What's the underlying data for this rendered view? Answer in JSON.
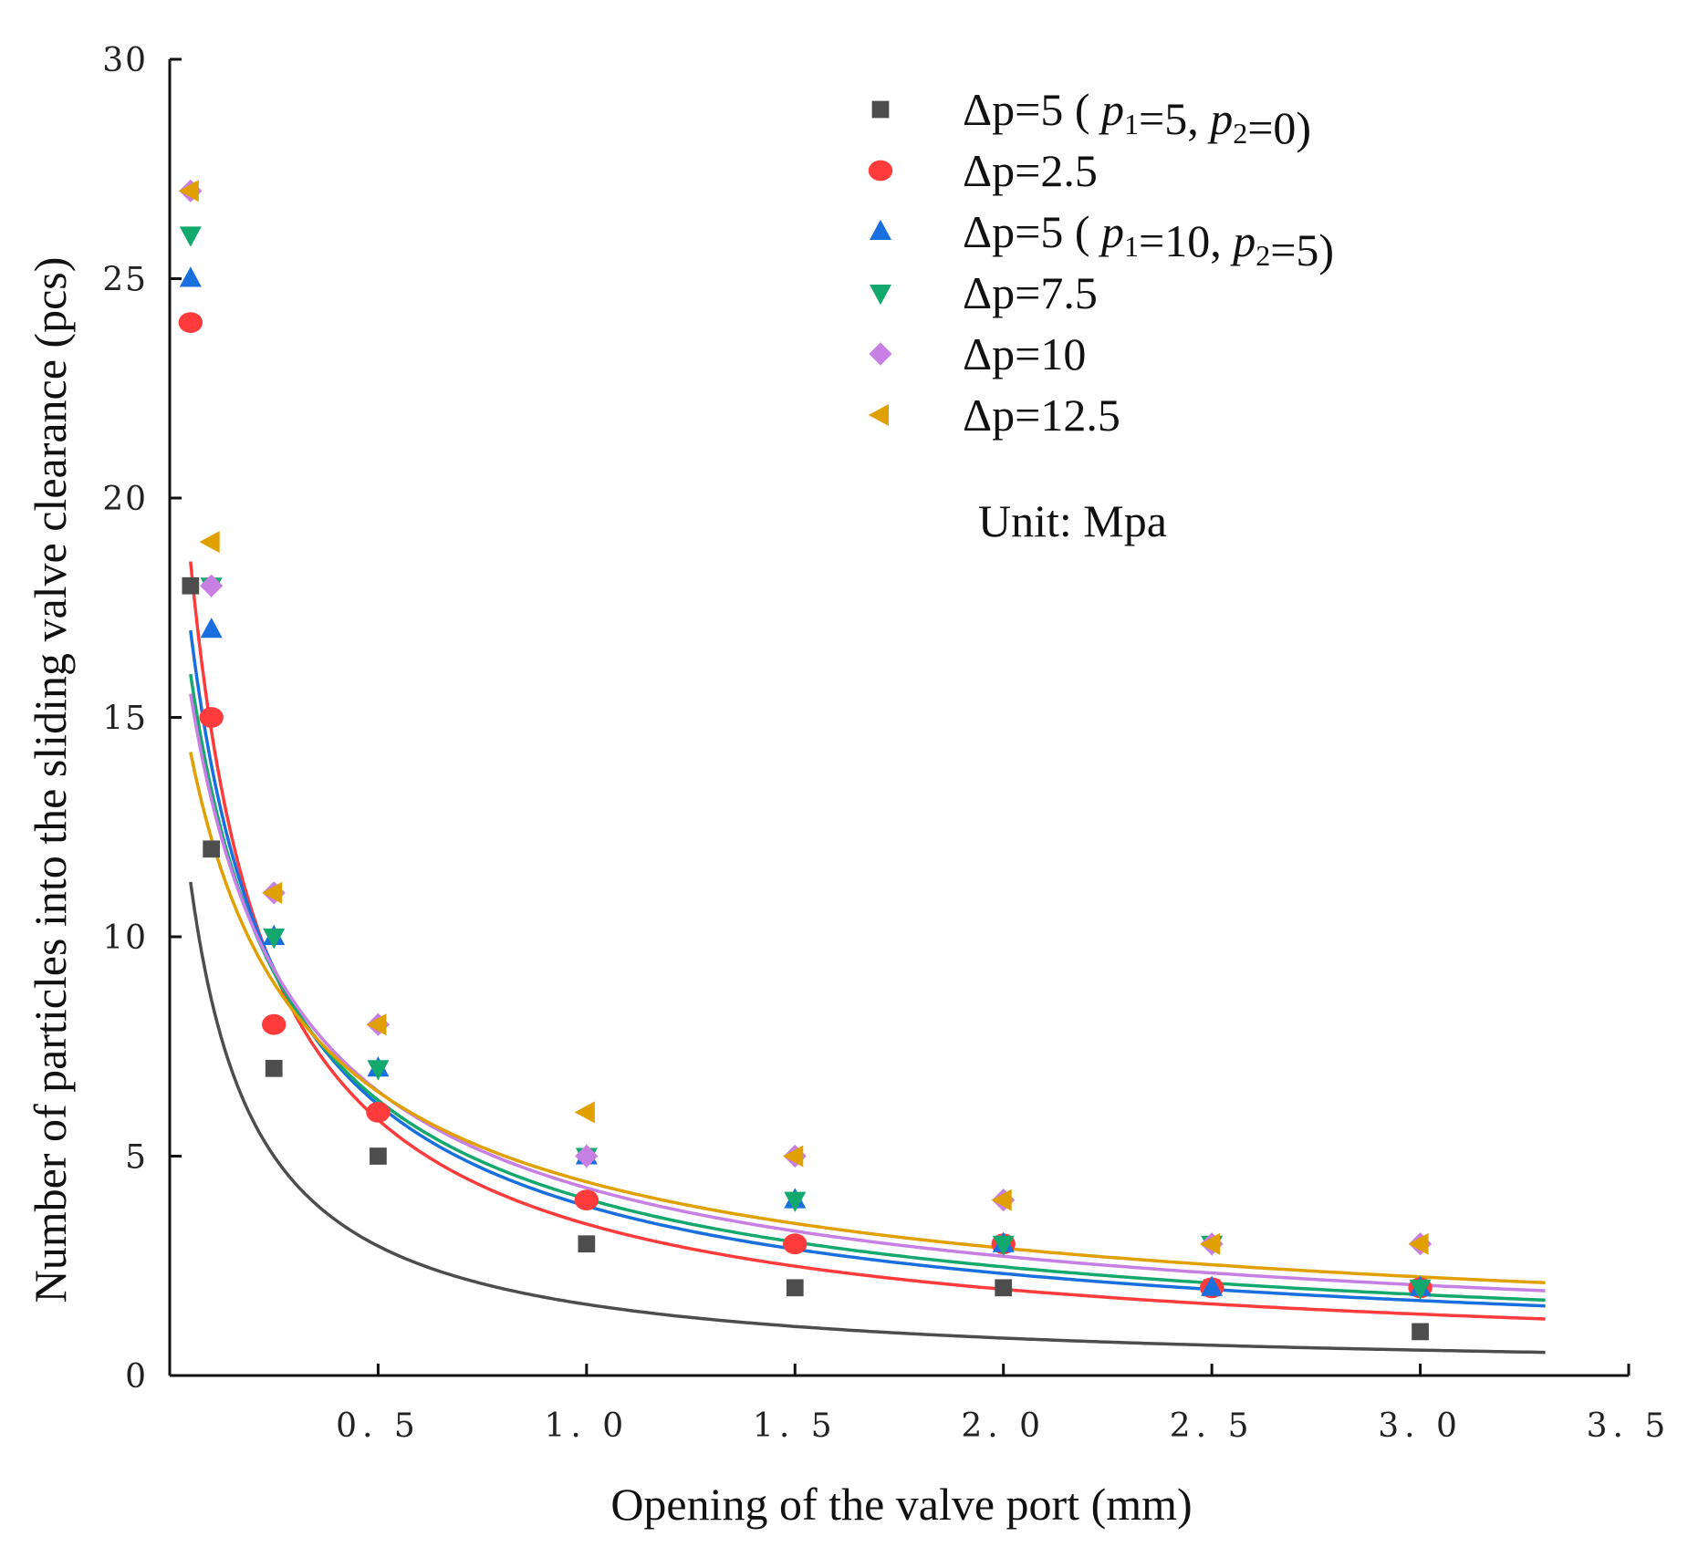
{
  "chart_data": {
    "type": "scatter",
    "title": "",
    "xlabel": "Opening of the valve port (mm)",
    "ylabel": "Number of particles into the sliding valve clearance  (pcs)",
    "xlim": [
      0,
      3.5
    ],
    "ylim": [
      0,
      30
    ],
    "xticks": [
      0.5,
      1.0,
      1.5,
      2.0,
      2.5,
      3.0,
      3.5
    ],
    "xtick_labels": [
      "0. 5",
      "1. 0",
      "1. 5",
      "2. 0",
      "2. 5",
      "3. 0",
      "3. 5"
    ],
    "yticks": [
      0,
      5,
      10,
      15,
      20,
      25,
      30
    ],
    "ytick_labels": [
      "0",
      "5",
      "10",
      "15",
      "20",
      "25",
      "30"
    ],
    "grid": false,
    "legend_position": "top-right",
    "note": "Unit: Mpa",
    "series": [
      {
        "name": "Δp=5 ( p1=5, p2=0)",
        "legend_parts": [
          {
            "t": "Δp=5 ( "
          },
          {
            "t": "p",
            "i": true
          },
          {
            "t": "1",
            "sub": true
          },
          {
            "t": "=5, "
          },
          {
            "t": "p",
            "i": true
          },
          {
            "t": "2",
            "sub": true
          },
          {
            "t": "=0)"
          }
        ],
        "marker": "square",
        "color": "#4d4d4d",
        "x": [
          0.05,
          0.1,
          0.25,
          0.5,
          1.0,
          1.5,
          2.0,
          2.5,
          3.0
        ],
        "y": [
          18,
          12,
          7,
          5,
          3,
          2,
          2,
          2,
          1
        ],
        "fit": {
          "a": 1.8,
          "b": 0.11,
          "c": 1.0
        }
      },
      {
        "name": "Δp=2.5",
        "legend_parts": [
          {
            "t": "Δp=2.5"
          }
        ],
        "marker": "circle",
        "color": "#ff3b3b",
        "x": [
          0.05,
          0.1,
          0.25,
          0.5,
          1.0,
          1.5,
          2.0,
          2.5,
          3.0
        ],
        "y": [
          24,
          15,
          8,
          6,
          4,
          3,
          3,
          2,
          2
        ],
        "fit": {
          "a": 3.8,
          "b": 0.115,
          "c": 0.88
        }
      },
      {
        "name": "Δp=5 ( p1=10, p2=5)",
        "legend_parts": [
          {
            "t": "Δp=5 ( "
          },
          {
            "t": "p",
            "i": true
          },
          {
            "t": "1",
            "sub": true
          },
          {
            "t": "=10, "
          },
          {
            "t": "p",
            "i": true
          },
          {
            "t": "2",
            "sub": true
          },
          {
            "t": "=5)"
          }
        ],
        "marker": "triangle-up",
        "color": "#1a6fdf",
        "x": [
          0.05,
          0.1,
          0.25,
          0.5,
          1.0,
          1.5,
          2.0,
          2.5,
          3.0
        ],
        "y": [
          25,
          17,
          10,
          7,
          5,
          4,
          3,
          2,
          2
        ],
        "fit": {
          "a": 4.25,
          "b": 0.127,
          "c": 0.8
        }
      },
      {
        "name": "Δp=7.5",
        "legend_parts": [
          {
            "t": "Δp=7.5"
          }
        ],
        "marker": "triangle-down",
        "color": "#13a86e",
        "x": [
          0.05,
          0.1,
          0.25,
          0.5,
          1.0,
          1.5,
          2.0,
          2.5,
          3.0
        ],
        "y": [
          26,
          18,
          10,
          7,
          5,
          4,
          3,
          3,
          2
        ],
        "fit": {
          "a": 4.45,
          "b": 0.14,
          "c": 0.77
        }
      },
      {
        "name": "Δp=10",
        "legend_parts": [
          {
            "t": "Δp=10"
          }
        ],
        "marker": "diamond",
        "color": "#c77fe3",
        "x": [
          0.05,
          0.1,
          0.25,
          0.5,
          1.0,
          1.5,
          2.0,
          2.5,
          3.0
        ],
        "y": [
          27,
          18,
          11,
          8,
          5,
          5,
          4,
          3,
          3
        ],
        "fit": {
          "a": 4.7,
          "b": 0.14,
          "c": 0.72
        }
      },
      {
        "name": "Δp=12.5",
        "legend_parts": [
          {
            "t": "Δp=12.5"
          }
        ],
        "marker": "triangle-left",
        "color": "#e0a000",
        "x": [
          0.05,
          0.1,
          0.25,
          0.5,
          1.0,
          1.5,
          2.0,
          2.5,
          3.0
        ],
        "y": [
          27,
          19,
          11,
          8,
          6,
          5,
          4,
          3,
          3
        ],
        "fit": {
          "a": 4.85,
          "b": 0.151,
          "c": 0.67
        }
      }
    ]
  }
}
